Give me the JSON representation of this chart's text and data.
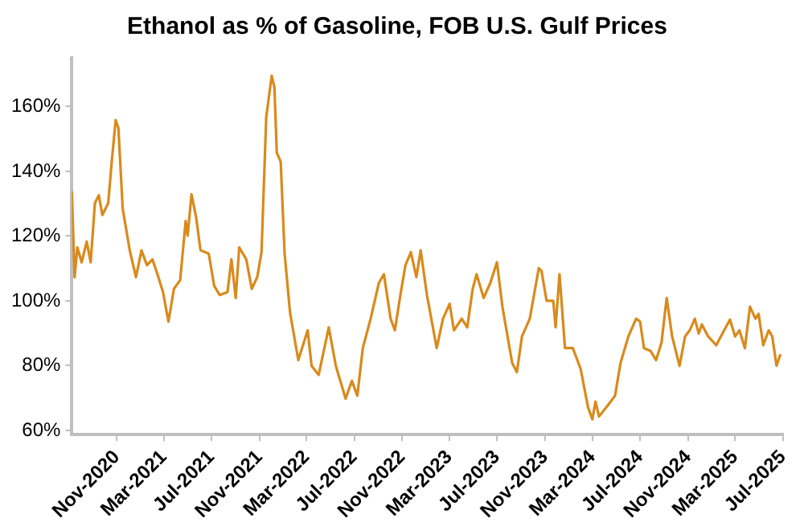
{
  "chart_data": {
    "type": "line",
    "title": "Ethanol as % of Gasoline, FOB U.S. Gulf Prices",
    "x": [
      "2020-07-09",
      "2020-07-16",
      "2020-07-23",
      "2020-08-03",
      "2020-08-16",
      "2020-08-26",
      "2020-09-06",
      "2020-09-16",
      "2020-09-25",
      "2020-10-10",
      "2020-10-19",
      "2020-10-29",
      "2020-11-05",
      "2020-11-16",
      "2020-12-04",
      "2020-12-20",
      "2021-01-03",
      "2021-01-17",
      "2021-01-31",
      "2021-02-13",
      "2021-02-27",
      "2021-03-13",
      "2021-03-27",
      "2021-04-12",
      "2021-04-26",
      "2021-05-01",
      "2021-05-11",
      "2021-05-23",
      "2021-06-03",
      "2021-06-24",
      "2021-07-08",
      "2021-07-22",
      "2021-08-11",
      "2021-08-21",
      "2021-09-01",
      "2021-09-10",
      "2021-09-28",
      "2021-10-12",
      "2021-10-26",
      "2021-11-06",
      "2021-11-18",
      "2021-12-02",
      "2021-12-09",
      "2021-12-15",
      "2021-12-25",
      "2022-01-04",
      "2022-01-18",
      "2022-02-08",
      "2022-03-04",
      "2022-03-14",
      "2022-04-01",
      "2022-04-27",
      "2022-05-15",
      "2022-06-09",
      "2022-06-25",
      "2022-07-09",
      "2022-07-23",
      "2022-08-12",
      "2022-09-02",
      "2022-09-15",
      "2022-10-02",
      "2022-10-13",
      "2022-10-27",
      "2022-11-09",
      "2022-11-23",
      "2022-12-07",
      "2022-12-18",
      "2023-01-03",
      "2023-01-28",
      "2023-02-13",
      "2023-03-02",
      "2023-03-13",
      "2023-04-02",
      "2023-04-16",
      "2023-04-30",
      "2023-05-10",
      "2023-05-28",
      "2023-06-14",
      "2023-07-01",
      "2023-07-15",
      "2023-08-09",
      "2023-08-21",
      "2023-09-03",
      "2023-09-23",
      "2023-10-16",
      "2023-10-23",
      "2023-11-05",
      "2023-11-22",
      "2023-11-28",
      "2023-12-08",
      "2023-12-22",
      "2024-01-11",
      "2024-01-31",
      "2024-02-19",
      "2024-03-01",
      "2024-03-09",
      "2024-03-18",
      "2024-04-08",
      "2024-04-28",
      "2024-05-12",
      "2024-06-01",
      "2024-06-21",
      "2024-07-01",
      "2024-07-11",
      "2024-07-28",
      "2024-08-11",
      "2024-08-25",
      "2024-09-07",
      "2024-09-21",
      "2024-10-10",
      "2024-10-24",
      "2024-11-05",
      "2024-11-18",
      "2024-11-28",
      "2024-12-06",
      "2024-12-22",
      "2025-01-12",
      "2025-02-01",
      "2025-02-16",
      "2025-03-01",
      "2025-03-12",
      "2025-03-26",
      "2025-04-08",
      "2025-04-22",
      "2025-04-30",
      "2025-05-12",
      "2025-05-26",
      "2025-06-04",
      "2025-06-15",
      "2025-06-25"
    ],
    "series": [
      {
        "color": "#d98a1c",
        "values": [
          133.8,
          107.3,
          116.5,
          111.9,
          118.3,
          111.9,
          130.2,
          132.6,
          126.5,
          130.2,
          143,
          155.8,
          153.4,
          128.4,
          115.6,
          107.3,
          115.6,
          111,
          112.8,
          108.2,
          102.7,
          93.6,
          103.7,
          106.4,
          124.7,
          120.1,
          132.9,
          125.6,
          115.6,
          114.6,
          104.6,
          101.8,
          102.7,
          112.8,
          100.9,
          116.5,
          112.8,
          103.7,
          107.3,
          115,
          156.7,
          169.5,
          165.9,
          145.7,
          143,
          114.6,
          96.3,
          81.7,
          90.9,
          79.9,
          77.1,
          91.8,
          79.9,
          69.8,
          75.3,
          70.7,
          85.4,
          94.5,
          105.5,
          108.2,
          94.5,
          90.9,
          101.8,
          111,
          115,
          107.3,
          115.6,
          101.8,
          85.4,
          94.5,
          99.1,
          90.9,
          94.5,
          91.8,
          103.7,
          108.2,
          100.9,
          105.5,
          111.9,
          98.2,
          80.8,
          78,
          89,
          94.5,
          110.1,
          109.2,
          100,
          100,
          91.8,
          108.2,
          85.4,
          85.4,
          79,
          67.1,
          63.4,
          68.9,
          64.3,
          67.5,
          70.7,
          80.8,
          89,
          94.5,
          93.6,
          85.4,
          84.5,
          81.7,
          87.2,
          100.9,
          89,
          79.9,
          89,
          90.9,
          94.5,
          89.9,
          92.7,
          89,
          86.3,
          90.9,
          94.2,
          89,
          90.9,
          85.4,
          98.2,
          94.5,
          96,
          86.3,
          90.9,
          89,
          80,
          83.5
        ]
      }
    ],
    "xlim": [
      "2020-07-09",
      "2025-07-01"
    ],
    "xticks": [
      {
        "value": "2020-11-01",
        "label": "Nov-2020"
      },
      {
        "value": "2021-03-01",
        "label": "Mar-2021"
      },
      {
        "value": "2021-07-01",
        "label": "Jul-2021"
      },
      {
        "value": "2021-11-01",
        "label": "Nov-2021"
      },
      {
        "value": "2022-03-01",
        "label": "Mar-2022"
      },
      {
        "value": "2022-07-01",
        "label": "Jul-2022"
      },
      {
        "value": "2022-11-01",
        "label": "Nov-2022"
      },
      {
        "value": "2023-03-01",
        "label": "Mar-2023"
      },
      {
        "value": "2023-07-01",
        "label": "Jul-2023"
      },
      {
        "value": "2023-11-01",
        "label": "Nov-2023"
      },
      {
        "value": "2024-03-01",
        "label": "Mar-2024"
      },
      {
        "value": "2024-07-01",
        "label": "Jul-2024"
      },
      {
        "value": "2024-11-01",
        "label": "Nov-2024"
      },
      {
        "value": "2025-03-01",
        "label": "Mar-2025"
      },
      {
        "value": "2025-07-01",
        "label": "Jul-2025"
      }
    ],
    "ylim": [
      58.7,
      175
    ],
    "yticks": [
      {
        "value": 60,
        "label": "60%"
      },
      {
        "value": 80,
        "label": "80%"
      },
      {
        "value": 100,
        "label": "100%"
      },
      {
        "value": 120,
        "label": "120%"
      },
      {
        "value": 140,
        "label": "140%"
      },
      {
        "value": 160,
        "label": "160%"
      }
    ],
    "grid": false,
    "legend": false,
    "marker": "none",
    "line_style": "solid"
  }
}
